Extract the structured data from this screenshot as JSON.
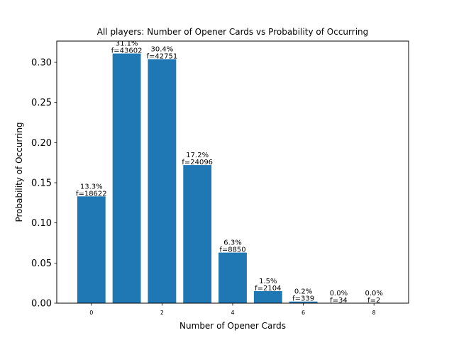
{
  "chart_data": {
    "type": "bar",
    "title": "All players: Number of Opener Cards vs Probability of Occurring",
    "xlabel": "Number of Opener Cards",
    "ylabel": "Probability of Occurring",
    "x": [
      0,
      1,
      2,
      3,
      4,
      5,
      6,
      7,
      8
    ],
    "values": [
      0.133,
      0.311,
      0.304,
      0.172,
      0.063,
      0.015,
      0.002,
      0.0002,
      1e-05
    ],
    "bar_labels": [
      {
        "pct": "13.3%",
        "freq": "f=18622"
      },
      {
        "pct": "31.1%",
        "freq": "f=43602"
      },
      {
        "pct": "30.4%",
        "freq": "f=42751"
      },
      {
        "pct": "17.2%",
        "freq": "f=24096"
      },
      {
        "pct": "6.3%",
        "freq": "f=8850"
      },
      {
        "pct": "1.5%",
        "freq": "f=2104"
      },
      {
        "pct": "0.2%",
        "freq": "f=339"
      },
      {
        "pct": "0.0%",
        "freq": "f=34"
      },
      {
        "pct": "0.0%",
        "freq": "f=2"
      }
    ],
    "xlim": [
      -0.98,
      8.98
    ],
    "ylim": [
      0,
      0.3265
    ],
    "xticks": [
      0,
      2,
      4,
      6,
      8
    ],
    "xtick_labels": [
      "0",
      "2",
      "4",
      "6",
      "8"
    ],
    "yticks": [
      0,
      0.05,
      0.1,
      0.15,
      0.2,
      0.25,
      0.3
    ],
    "ytick_labels": [
      "0.00",
      "0.05",
      "0.10",
      "0.15",
      "0.20",
      "0.25",
      "0.30"
    ],
    "bar_color": "#1f77b4",
    "grid": false,
    "legend": "none"
  }
}
